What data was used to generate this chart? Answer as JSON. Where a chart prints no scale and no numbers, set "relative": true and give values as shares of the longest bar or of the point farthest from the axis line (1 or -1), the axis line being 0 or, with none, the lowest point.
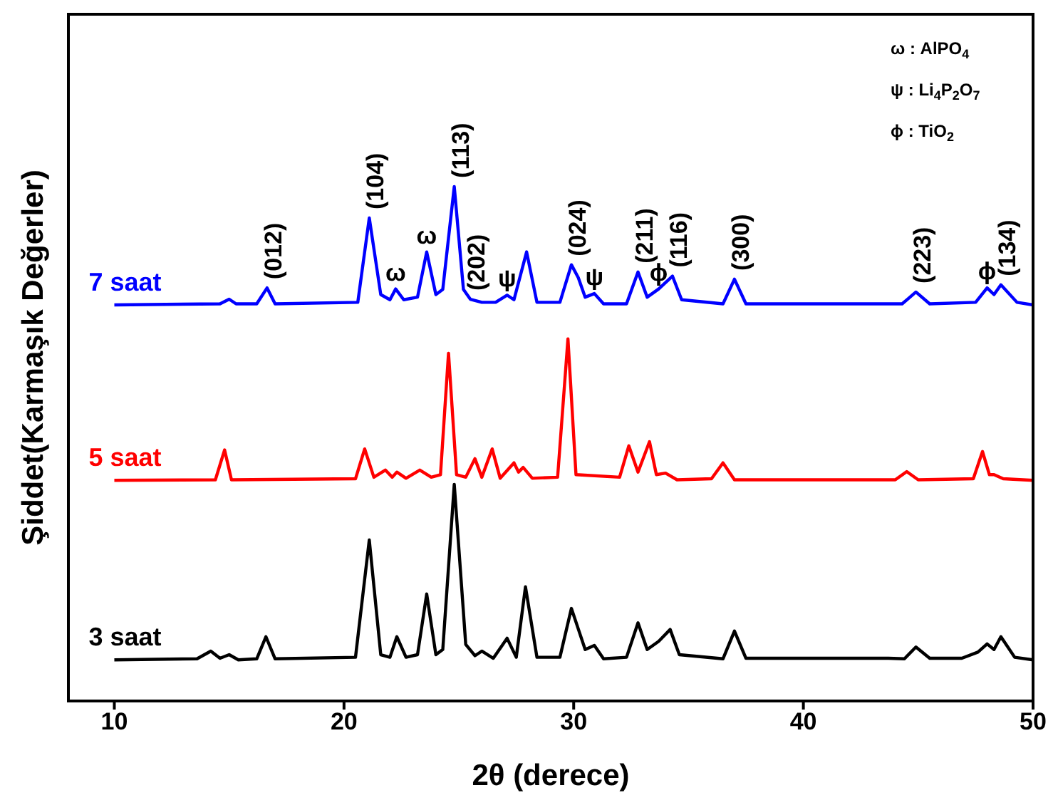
{
  "chart_data": {
    "type": "line",
    "relative": true,
    "xlabel": "2θ (derece)",
    "ylabel": "Şiddet(Karmaşık Değerler)",
    "xlim": [
      8,
      50
    ],
    "xticks": [
      10,
      20,
      30,
      40,
      50
    ],
    "marker": "none",
    "line_style": "solid",
    "series": [
      {
        "name": "7 saat",
        "color": "#0000ff",
        "x": [
          10,
          14.6,
          15.0,
          15.3,
          16.2,
          16.65,
          17.0,
          20.6,
          21.1,
          21.6,
          22.0,
          22.25,
          22.6,
          23.2,
          23.6,
          24.0,
          24.3,
          24.8,
          25.2,
          25.5,
          26.0,
          26.6,
          27.1,
          27.4,
          27.95,
          28.4,
          29.4,
          29.9,
          30.2,
          30.5,
          30.9,
          31.3,
          32.3,
          32.8,
          33.2,
          33.7,
          34.3,
          34.7,
          36.5,
          37.0,
          37.5,
          44.3,
          44.9,
          45.5,
          47.5,
          48.0,
          48.3,
          48.6,
          49.3,
          50
        ],
        "values": [
          0.77,
          0.772,
          0.781,
          0.772,
          0.772,
          0.803,
          0.772,
          0.775,
          0.939,
          0.79,
          0.78,
          0.801,
          0.78,
          0.785,
          0.873,
          0.79,
          0.8,
          1,
          0.8,
          0.781,
          0.775,
          0.775,
          0.789,
          0.78,
          0.873,
          0.775,
          0.775,
          0.848,
          0.823,
          0.785,
          0.792,
          0.772,
          0.772,
          0.834,
          0.785,
          0.801,
          0.826,
          0.78,
          0.772,
          0.82,
          0.772,
          0.772,
          0.795,
          0.772,
          0.775,
          0.803,
          0.79,
          0.809,
          0.775,
          0.77
        ]
      },
      {
        "name": "5 saat",
        "color": "#ff0000",
        "x": [
          10,
          14.4,
          14.8,
          15.1,
          20.5,
          20.9,
          21.3,
          21.8,
          22.1,
          22.3,
          22.7,
          23.3,
          23.8,
          24.2,
          24.55,
          24.9,
          25.3,
          25.7,
          26.0,
          26.45,
          26.8,
          27.4,
          27.6,
          27.8,
          28.2,
          29.3,
          29.75,
          30.1,
          32.0,
          32.4,
          32.8,
          33.3,
          33.6,
          34.0,
          34.5,
          36.0,
          36.5,
          37.0,
          44.0,
          44.5,
          45.0,
          47.4,
          47.8,
          48.1,
          48.3,
          48.7,
          50
        ],
        "values": [
          0.429,
          0.43,
          0.488,
          0.43,
          0.432,
          0.49,
          0.435,
          0.449,
          0.435,
          0.445,
          0.433,
          0.449,
          0.435,
          0.44,
          0.676,
          0.44,
          0.435,
          0.471,
          0.435,
          0.49,
          0.433,
          0.463,
          0.445,
          0.454,
          0.433,
          0.435,
          0.704,
          0.44,
          0.435,
          0.496,
          0.445,
          0.504,
          0.44,
          0.443,
          0.43,
          0.432,
          0.463,
          0.43,
          0.43,
          0.446,
          0.43,
          0.432,
          0.485,
          0.44,
          0.44,
          0.432,
          0.429
        ]
      },
      {
        "name": "3 saat",
        "color": "#000000",
        "x": [
          10,
          13.6,
          14.2,
          14.6,
          15.0,
          15.4,
          16.2,
          16.6,
          17.0,
          20.5,
          21.1,
          21.6,
          22.0,
          22.3,
          22.7,
          23.2,
          23.6,
          24.0,
          24.3,
          24.8,
          25.3,
          25.7,
          26.0,
          26.5,
          27.1,
          27.5,
          27.9,
          28.4,
          29.4,
          29.9,
          30.2,
          30.5,
          30.9,
          31.3,
          32.3,
          32.8,
          33.2,
          33.7,
          34.2,
          34.6,
          36.5,
          37.0,
          37.5,
          43.7,
          44.4,
          44.9,
          45.5,
          46.9,
          47.6,
          48.0,
          48.3,
          48.6,
          49.2,
          50
        ],
        "values": [
          0.08,
          0.082,
          0.097,
          0.083,
          0.09,
          0.08,
          0.082,
          0.125,
          0.082,
          0.085,
          0.313,
          0.09,
          0.085,
          0.125,
          0.085,
          0.09,
          0.208,
          0.09,
          0.1,
          0.421,
          0.11,
          0.088,
          0.097,
          0.083,
          0.122,
          0.085,
          0.222,
          0.085,
          0.085,
          0.18,
          0.14,
          0.1,
          0.108,
          0.082,
          0.085,
          0.152,
          0.1,
          0.116,
          0.139,
          0.09,
          0.082,
          0.136,
          0.083,
          0.083,
          0.082,
          0.105,
          0.083,
          0.083,
          0.095,
          0.111,
          0.1,
          0.125,
          0.085,
          0.08
        ]
      }
    ],
    "annotations": [
      "ω : AlPO$_{4}$",
      "ψ : Li$_{4}$P$_{2}$O$_{7}$",
      "ϕ : TiO$_{2}$",
      {
        "text": "(012)",
        "x": 16.65,
        "y": 0.803
      },
      {
        "text": "(104)",
        "x": 21.1,
        "y": 0.939
      },
      {
        "text": "ω",
        "x": 22.25,
        "y": 0.801
      },
      {
        "text": "ω",
        "x": 23.6,
        "y": 0.873
      },
      {
        "text": "(113)",
        "x": 24.8,
        "y": 1
      },
      {
        "text": "(202)",
        "x": 25.5,
        "y": 0.781
      },
      {
        "text": "ψ",
        "x": 27.1,
        "y": 0.789
      },
      {
        "text": "(024)",
        "x": 29.9,
        "y": 0.848
      },
      {
        "text": "ψ",
        "x": 30.9,
        "y": 0.792
      },
      {
        "text": "(211)",
        "x": 32.8,
        "y": 0.834
      },
      {
        "text": "ϕ",
        "x": 33.7,
        "y": 0.801
      },
      {
        "text": "(116)",
        "x": 34.3,
        "y": 0.826
      },
      {
        "text": "(300)",
        "x": 37.0,
        "y": 0.82
      },
      {
        "text": "(223)",
        "x": 44.9,
        "y": 0.795
      },
      {
        "text": "ϕ",
        "x": 48.0,
        "y": 0.803
      },
      {
        "text": "(134)",
        "x": 48.6,
        "y": 0.809
      }
    ]
  }
}
